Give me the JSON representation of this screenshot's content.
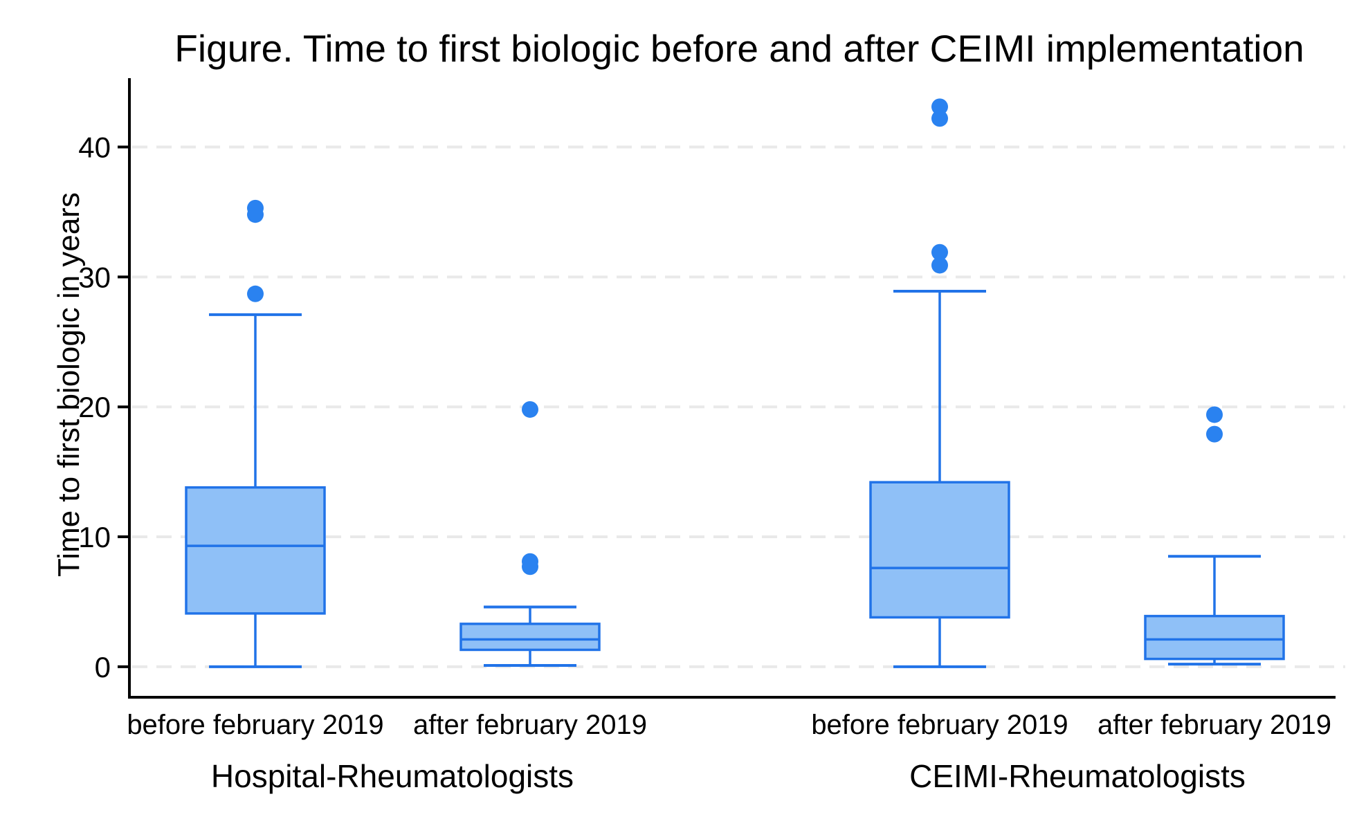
{
  "chart_data": {
    "type": "box",
    "title": "Figure. Time to first biologic before and after CEIMI implementation",
    "ylabel": "Time to first biologic in years",
    "xlabel": "",
    "ylim": [
      -2.35,
      45.3
    ],
    "yticks": [
      0,
      10,
      20,
      30,
      40
    ],
    "grid": "horizontal-dashed",
    "legend": "none",
    "groups": [
      {
        "label": "Hospital-Rheumatologists",
        "boxes": [
          {
            "label": "before february 2019",
            "whisker_low": 0,
            "q1": 4.1,
            "median": 9.3,
            "q3": 13.8,
            "whisker_high": 27.1,
            "outliers": [
              35.3,
              34.8,
              28.7
            ]
          },
          {
            "label": "after february 2019",
            "whisker_low": 0.1,
            "q1": 1.3,
            "median": 2.1,
            "q3": 3.3,
            "whisker_high": 4.6,
            "outliers": [
              19.8,
              8.1,
              7.7
            ]
          }
        ]
      },
      {
        "label": "CEIMI-Rheumatologists",
        "boxes": [
          {
            "label": "before february 2019",
            "whisker_low": 0,
            "q1": 3.8,
            "median": 7.6,
            "q3": 14.2,
            "whisker_high": 28.9,
            "outliers": [
              43.1,
              42.2,
              31.9,
              30.9
            ]
          },
          {
            "label": "after february 2019",
            "whisker_low": 0.2,
            "q1": 0.6,
            "median": 2.1,
            "q3": 3.9,
            "whisker_high": 8.5,
            "outliers": [
              19.4,
              17.9
            ]
          }
        ]
      }
    ],
    "colors": {
      "box_fill": "#8fc0f7",
      "box_stroke": "#2173e8",
      "outlier_dot": "#2a82f0",
      "gridline": "#e9e9e9",
      "axis": "#000000",
      "text": "#000000",
      "background": "#ffffff"
    }
  }
}
